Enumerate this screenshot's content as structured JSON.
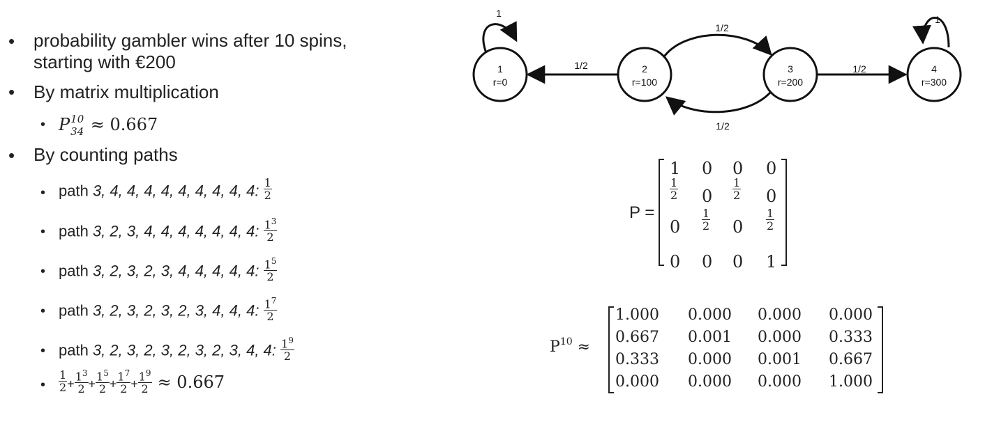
{
  "bullets": {
    "b1_line1": "probability gambler wins after 10 spins,",
    "b1_line2": "starting with €200",
    "b2": "By matrix multiplication",
    "b2_sub_sym": "P",
    "b2_sub_sup": "10",
    "b2_sub_sub": "34",
    "b2_sub_val": "≈ 0.667",
    "b3": "By counting paths",
    "paths": [
      {
        "prefix": "path ",
        "seq": "3, 4, 4, 4, 4, 4, 4, 4, 4, 4",
        "num": "1",
        "exp": "",
        "den": "2"
      },
      {
        "prefix": "path ",
        "seq": "3, 2, 3, 4, 4, 4, 4, 4, 4, 4",
        "num": "1",
        "exp": "3",
        "den": "2"
      },
      {
        "prefix": "path ",
        "seq": "3, 2, 3, 2, 3, 4, 4, 4, 4, 4",
        "num": "1",
        "exp": "5",
        "den": "2"
      },
      {
        "prefix": "path ",
        "seq": "3, 2, 3, 2, 3, 2, 3, 4, 4, 4",
        "num": "1",
        "exp": "7",
        "den": "2"
      },
      {
        "prefix": "path ",
        "seq": "3, 2, 3, 2, 3, 2, 3, 2, 3, 4, 4",
        "num": "1",
        "exp": "9",
        "den": "2"
      }
    ],
    "sum_result": "≈ 0.667",
    "plus": "+",
    "bullet_char": "•"
  },
  "diagram": {
    "nodes": [
      {
        "id": "1",
        "reward": "r=0"
      },
      {
        "id": "2",
        "reward": "r=100"
      },
      {
        "id": "3",
        "reward": "r=200"
      },
      {
        "id": "4",
        "reward": "r=300"
      }
    ],
    "edges": [
      {
        "from": "1",
        "to": "1",
        "label": "1"
      },
      {
        "from": "2",
        "to": "1",
        "label": "1/2"
      },
      {
        "from": "2",
        "to": "3",
        "label": "1/2"
      },
      {
        "from": "3",
        "to": "2",
        "label": "1/2"
      },
      {
        "from": "3",
        "to": "4",
        "label": "1/2"
      },
      {
        "from": "4",
        "to": "4",
        "label": "1"
      }
    ]
  },
  "matrix_p": {
    "label": "P =",
    "rows": [
      [
        {
          "t": "1"
        },
        {
          "t": "0"
        },
        {
          "t": "0"
        },
        {
          "t": "0"
        }
      ],
      [
        {
          "n": "1",
          "d": "2"
        },
        {
          "t": "0"
        },
        {
          "n": "1",
          "d": "2"
        },
        {
          "t": "0"
        }
      ],
      [
        {
          "t": "0"
        },
        {
          "n": "1",
          "d": "2"
        },
        {
          "t": "0"
        },
        {
          "n": "1",
          "d": "2"
        }
      ],
      [
        {
          "t": "0"
        },
        {
          "t": "0"
        },
        {
          "t": "0"
        },
        {
          "t": "1"
        }
      ]
    ]
  },
  "matrix_p10": {
    "label_base": "P",
    "label_sup": "10",
    "label_rel": "≈",
    "rows": [
      [
        "1.000",
        "0.000",
        "0.000",
        "0.000"
      ],
      [
        "0.667",
        "0.001",
        "0.000",
        "0.333"
      ],
      [
        "0.333",
        "0.000",
        "0.001",
        "0.667"
      ],
      [
        "0.000",
        "0.000",
        "0.000",
        "1.000"
      ]
    ]
  }
}
